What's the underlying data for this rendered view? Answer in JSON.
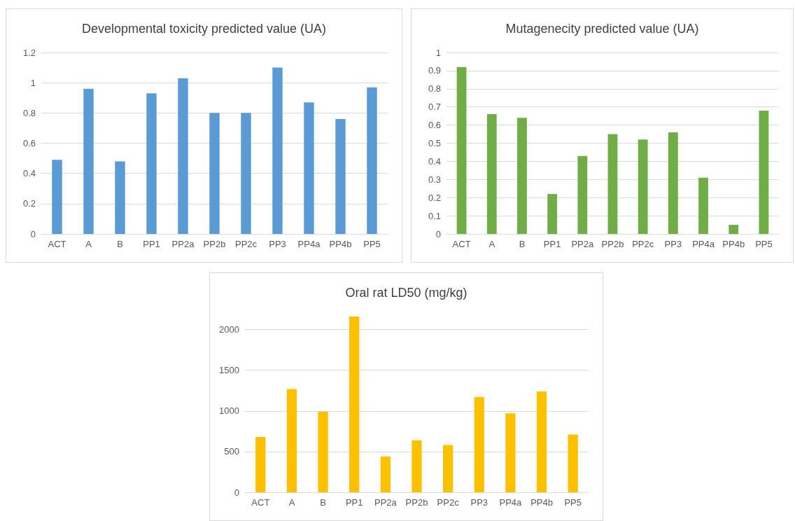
{
  "chart_data": [
    {
      "type": "bar",
      "title": "Developmental toxicity predicted value (UA)",
      "categories": [
        "ACT",
        "A",
        "B",
        "PP1",
        "PP2a",
        "PP2b",
        "PP2c",
        "PP3",
        "PP4a",
        "PP4b",
        "PP5"
      ],
      "values": [
        0.49,
        0.96,
        0.48,
        0.93,
        1.03,
        0.8,
        0.8,
        1.1,
        0.87,
        0.76,
        0.97
      ],
      "color": "#5b9bd5",
      "ylim": [
        0,
        1.2
      ],
      "yticks": [
        0,
        {
          "value": 0.2,
          "label": "0.2"
        },
        {
          "value": 0.4,
          "label": "0.4"
        },
        {
          "value": 0.6,
          "label": "0.6"
        },
        {
          "value": 0.8,
          "label": "0.8"
        },
        1,
        {
          "value": 1.2,
          "label": "1.2"
        }
      ],
      "grid": "y"
    },
    {
      "type": "bar",
      "title": "Mutagenecity predicted value (UA)",
      "categories": [
        "ACT",
        "A",
        "B",
        "PP1",
        "PP2a",
        "PP2b",
        "PP2c",
        "PP3",
        "PP4a",
        "PP4b",
        "PP5"
      ],
      "values": [
        0.92,
        0.66,
        0.64,
        0.22,
        0.43,
        0.55,
        0.52,
        0.56,
        0.31,
        0.05,
        0.68
      ],
      "color": "#70ad47",
      "ylim": [
        0,
        1
      ],
      "yticks": [
        0,
        {
          "value": 0.1,
          "label": "0.1"
        },
        {
          "value": 0.2,
          "label": "0.2"
        },
        {
          "value": 0.3,
          "label": "0.3"
        },
        {
          "value": 0.4,
          "label": "0.4"
        },
        {
          "value": 0.5,
          "label": "0.5"
        },
        {
          "value": 0.6,
          "label": "0.6"
        },
        {
          "value": 0.7,
          "label": "0.7"
        },
        {
          "value": 0.8,
          "label": "0.8"
        },
        {
          "value": 0.9,
          "label": "0.9"
        },
        1
      ],
      "grid": "y"
    },
    {
      "type": "bar",
      "title": "Oral rat LD50 (mg/kg)",
      "categories": [
        "ACT",
        "A",
        "B",
        "PP1",
        "PP2a",
        "PP2b",
        "PP2c",
        "PP3",
        "PP4a",
        "PP4b",
        "PP5"
      ],
      "values": [
        680,
        1270,
        990,
        2160,
        440,
        640,
        580,
        1170,
        970,
        1240,
        710
      ],
      "color": "#ffc000",
      "ylim": [
        0,
        2160
      ],
      "yticks": [
        0,
        500,
        1000,
        1500,
        2000
      ],
      "grid": "y"
    }
  ]
}
